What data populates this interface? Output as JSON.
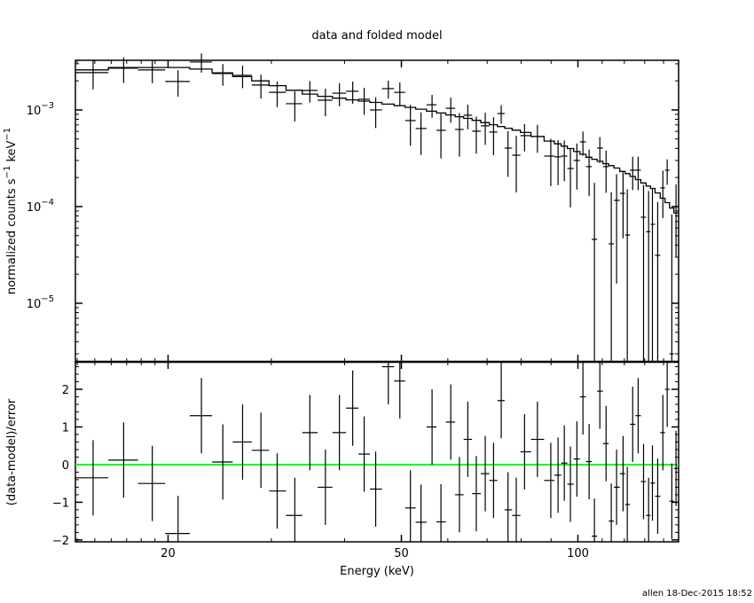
{
  "chart_data": [
    {
      "type": "scatter",
      "panel": "top",
      "title": "data and folded model",
      "xlabel": "Energy (keV)",
      "ylabel_parts": [
        "normalized counts s",
        "−1",
        " keV",
        "−1"
      ],
      "xscale": "log",
      "yscale": "log",
      "xlim": [
        13.9,
        148.5
      ],
      "ylim": [
        2.48e-06,
        0.00326
      ],
      "grid": false,
      "yticks": [
        {
          "value": 0.001,
          "base": "10",
          "exp": "−3"
        },
        {
          "value": 0.0001,
          "base": "10",
          "exp": "−4"
        },
        {
          "value": 1e-05,
          "base": "10",
          "exp": "−5"
        }
      ],
      "series": [
        {
          "name": "data",
          "columns": [
            "energy_keV",
            "value",
            "error"
          ],
          "points": [
            [
              14.9,
              0.00243,
              0.0008
            ],
            [
              16.8,
              0.0027,
              0.0008
            ],
            [
              18.8,
              0.00259,
              0.0007
            ],
            [
              20.8,
              0.00197,
              0.0006
            ],
            [
              22.8,
              0.00313,
              0.0007
            ],
            [
              24.8,
              0.00238,
              0.0006
            ],
            [
              26.8,
              0.00228,
              0.0006
            ],
            [
              28.8,
              0.00181,
              0.0005
            ],
            [
              30.7,
              0.00152,
              0.00045
            ],
            [
              32.9,
              0.00116,
              0.0004
            ],
            [
              34.9,
              0.00159,
              0.0004
            ],
            [
              37.1,
              0.00126,
              0.0004
            ],
            [
              39.2,
              0.00149,
              0.0004
            ],
            [
              41.3,
              0.00156,
              0.0004
            ],
            [
              43.2,
              0.00129,
              0.0004
            ],
            [
              45.2,
              0.001,
              0.00035
            ],
            [
              47.5,
              0.00166,
              0.00035
            ],
            [
              49.7,
              0.00152,
              0.0004
            ],
            [
              51.8,
              0.000776,
              0.00035
            ],
            [
              54.0,
              0.000642,
              0.0003
            ],
            [
              56.4,
              0.00113,
              0.0003
            ],
            [
              58.4,
              0.000615,
              0.0003
            ],
            [
              60.7,
              0.00104,
              0.0003
            ],
            [
              62.8,
              0.000628,
              0.0003
            ],
            [
              64.9,
              0.000881,
              0.00025
            ],
            [
              67.1,
              0.000603,
              0.00025
            ],
            [
              69.5,
              0.000684,
              0.00025
            ],
            [
              71.8,
              0.00059,
              0.00025
            ],
            [
              74.0,
              0.000918,
              0.0002
            ],
            [
              76.0,
              0.000403,
              0.0002
            ],
            [
              78.5,
              0.00034,
              0.0002
            ],
            [
              81.1,
              0.000542,
              0.00017
            ],
            [
              85.3,
              0.00053,
              0.00017
            ],
            [
              89.9,
              0.000333,
              0.00017
            ],
            [
              92.5,
              0.000327,
              0.00016
            ],
            [
              94.8,
              0.000333,
              0.00015
            ],
            [
              97.1,
              0.000248,
              0.00015
            ],
            [
              99.6,
              0.0003,
              0.00015
            ],
            [
              102,
              0.000467,
              0.00013
            ],
            [
              104.5,
              0.000259,
              0.00013
            ],
            [
              106.7,
              4.58e-05,
              0.00013
            ],
            [
              109,
              0.000403,
              0.00012
            ],
            [
              111.7,
              0.000259,
              0.00012
            ],
            [
              114,
              4.12e-05,
              0.0001
            ],
            [
              116.4,
              0.000116,
              0.0001
            ],
            [
              119.4,
              0.000137,
              9e-05
            ],
            [
              121.4,
              5.08e-05,
              0.0001
            ],
            [
              124,
              0.000238,
              9e-05
            ],
            [
              126.7,
              0.000238,
              9e-05
            ],
            [
              129.4,
              7.76e-05,
              9e-05
            ],
            [
              132,
              5.5e-05,
              9e-05
            ],
            [
              134,
              6.56e-05,
              9e-05
            ],
            [
              136.8,
              3.13e-05,
              8e-05
            ],
            [
              139.6,
              0.000156,
              8e-05
            ],
            [
              142,
              0.000238,
              7e-05
            ],
            [
              144.6,
              3e-06,
              8e-05
            ],
            [
              147,
              0.0001,
              7e-05
            ]
          ]
        },
        {
          "name": "folded model",
          "columns": [
            "energy_keV",
            "value"
          ],
          "knots": [
            [
              13.9,
              0.00245
            ],
            [
              16,
              0.00275
            ],
            [
              22,
              0.00275
            ],
            [
              25,
              0.0024
            ],
            [
              28,
              0.0021
            ],
            [
              31,
              0.00175
            ],
            [
              35,
              0.00145
            ],
            [
              40,
              0.0013
            ],
            [
              45,
              0.0012
            ],
            [
              50,
              0.0011
            ],
            [
              55,
              0.001
            ],
            [
              60,
              0.0009
            ],
            [
              66,
              0.0008
            ],
            [
              72,
              0.0007
            ],
            [
              80,
              0.0006
            ],
            [
              88,
              0.0005
            ],
            [
              97,
              0.0004
            ],
            [
              105,
              0.00032
            ],
            [
              115,
              0.00026
            ],
            [
              125,
              0.0002
            ],
            [
              135,
              0.00015
            ],
            [
              142,
              0.00011
            ],
            [
              148.5,
              8e-05
            ]
          ]
        }
      ]
    },
    {
      "type": "scatter",
      "panel": "bottom",
      "xlabel": "Energy (keV)",
      "ylabel": "(data-model)/error",
      "xscale": "log",
      "xlim": [
        13.9,
        148.5
      ],
      "ylim": [
        -2.05,
        2.73
      ],
      "xticks": [
        {
          "value": 20,
          "label": "20"
        },
        {
          "value": 50,
          "label": "50"
        },
        {
          "value": 100,
          "label": "100"
        }
      ],
      "yticks": [
        {
          "value": 2,
          "label": "2"
        },
        {
          "value": 1,
          "label": "1"
        },
        {
          "value": 0,
          "label": "0"
        },
        {
          "value": -1,
          "label": "−1"
        },
        {
          "value": -2,
          "label": "−2"
        }
      ],
      "zero_line_color": "#00ff00",
      "residuals": [
        -0.35,
        0.12,
        -0.5,
        -1.83,
        1.3,
        0.07,
        0.6,
        0.38,
        -0.7,
        -1.35,
        0.85,
        -0.6,
        0.85,
        1.5,
        0.28,
        -0.65,
        2.6,
        2.22,
        -1.15,
        -1.53,
        1.0,
        -1.52,
        1.13,
        -0.8,
        0.67,
        -0.77,
        -0.24,
        -0.42,
        1.7,
        -1.2,
        -1.35,
        0.34,
        0.67,
        -0.42,
        -0.28,
        0.04,
        -0.52,
        0.15,
        1.8,
        0.08,
        -1.9,
        1.95,
        0.56,
        -1.5,
        -0.6,
        -0.24,
        -1.06,
        1.07,
        1.3,
        -0.45,
        -1.35,
        -0.49,
        -0.84,
        0.85,
        2.0,
        -0.97,
        -0.1
      ],
      "residual_error": 1
    }
  ],
  "footer": "allen 18-Dec-2015 18:52"
}
